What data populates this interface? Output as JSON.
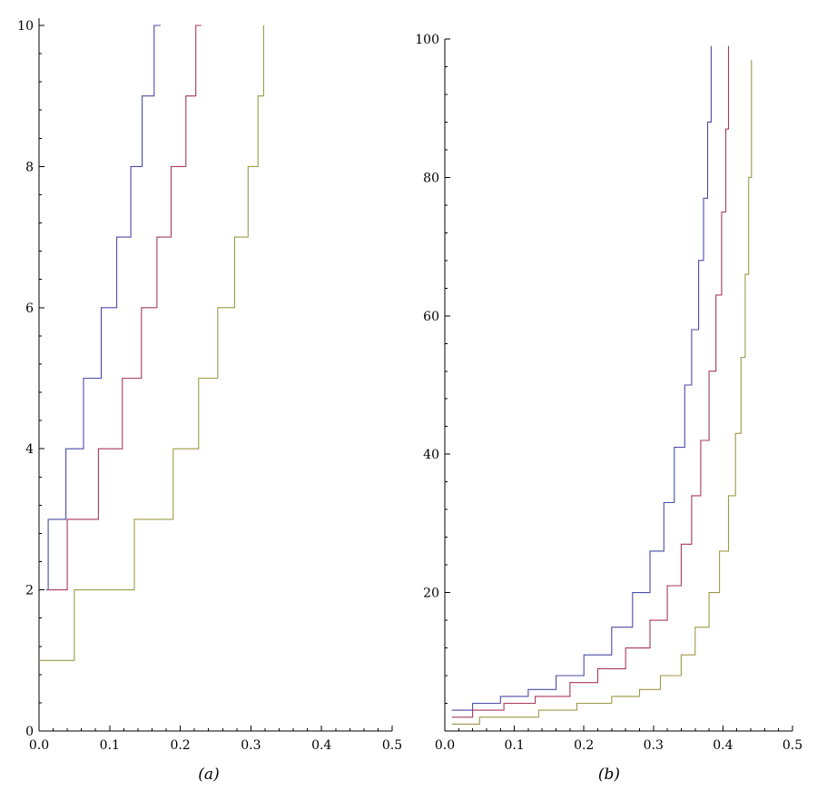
{
  "chart_data": [
    {
      "type": "line",
      "step": true,
      "panel_label": "(a)",
      "xlim": [
        0,
        0.5
      ],
      "ylim": [
        0,
        10
      ],
      "xticks": [
        "0.0",
        "0.1",
        "0.2",
        "0.3",
        "0.4",
        "0.5"
      ],
      "yticks": [
        "0",
        "2",
        "4",
        "6",
        "8",
        "10"
      ],
      "grid": false,
      "legend": "none",
      "series": [
        {
          "color": "#4b4ba8",
          "x": [
            0.01,
            0.013,
            0.038,
            0.063,
            0.088,
            0.11,
            0.13,
            0.146,
            0.163,
            0.172
          ],
          "y": [
            2,
            3,
            4,
            5,
            6,
            7,
            8,
            9,
            10,
            10
          ]
        },
        {
          "color": "#a8395e",
          "x": [
            0.012,
            0.04,
            0.084,
            0.118,
            0.145,
            0.167,
            0.187,
            0.208,
            0.222,
            0.23
          ],
          "y": [
            2,
            3,
            4,
            5,
            6,
            7,
            8,
            9,
            10,
            10
          ]
        },
        {
          "color": "#9c9a48",
          "x": [
            0.0,
            0.05,
            0.135,
            0.19,
            0.226,
            0.253,
            0.277,
            0.296,
            0.31,
            0.318
          ],
          "y": [
            1,
            2,
            3,
            4,
            5,
            6,
            7,
            8,
            9,
            10
          ]
        }
      ]
    },
    {
      "type": "line",
      "step": true,
      "panel_label": "(b)",
      "xlim": [
        0,
        0.5
      ],
      "ylim": [
        0,
        100
      ],
      "xticks": [
        "0.0",
        "0.1",
        "0.2",
        "0.3",
        "0.4",
        "0.5"
      ],
      "yticks": [
        "20",
        "40",
        "60",
        "80",
        "100"
      ],
      "grid": false,
      "legend": "none",
      "series": [
        {
          "color": "#4b4ba8",
          "x": [
            0.01,
            0.04,
            0.08,
            0.12,
            0.16,
            0.2,
            0.24,
            0.27,
            0.295,
            0.315,
            0.33,
            0.345,
            0.355,
            0.365,
            0.372,
            0.378,
            0.383
          ],
          "y": [
            3,
            4,
            5,
            6,
            8,
            11,
            15,
            20,
            26,
            33,
            41,
            50,
            58,
            68,
            77,
            88,
            99
          ]
        },
        {
          "color": "#a8395e",
          "x": [
            0.01,
            0.04,
            0.085,
            0.13,
            0.18,
            0.22,
            0.26,
            0.295,
            0.32,
            0.34,
            0.355,
            0.368,
            0.38,
            0.39,
            0.398,
            0.404,
            0.408
          ],
          "y": [
            2,
            3,
            4,
            5,
            7,
            9,
            12,
            16,
            21,
            27,
            34,
            42,
            52,
            63,
            75,
            87,
            99
          ]
        },
        {
          "color": "#9c9a48",
          "x": [
            0.01,
            0.05,
            0.135,
            0.19,
            0.24,
            0.28,
            0.31,
            0.34,
            0.36,
            0.38,
            0.395,
            0.408,
            0.418,
            0.426,
            0.432,
            0.437,
            0.441
          ],
          "y": [
            1,
            2,
            3,
            4,
            5,
            6,
            8,
            11,
            15,
            20,
            26,
            34,
            43,
            54,
            66,
            80,
            97
          ]
        }
      ]
    }
  ]
}
